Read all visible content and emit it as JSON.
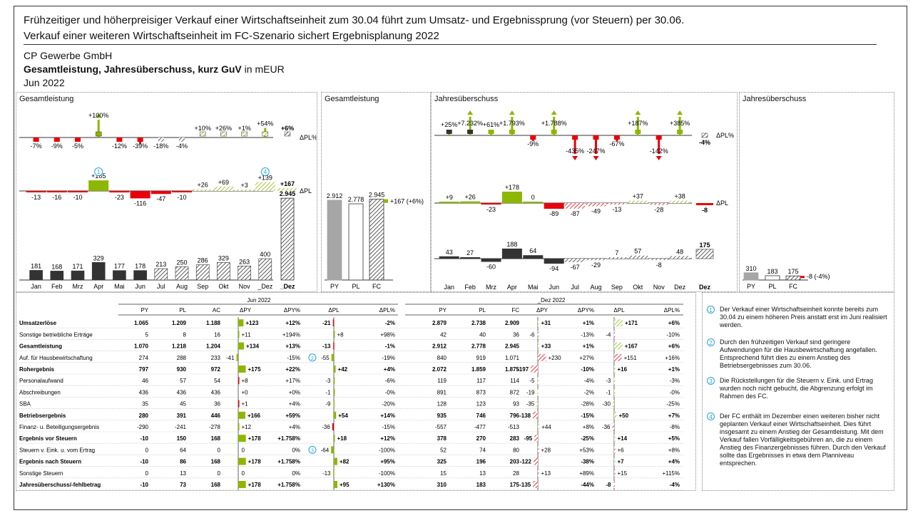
{
  "headline": {
    "line1": "Frühzeitiger und höherpreisiger Verkauf einer Wirtschaftseinheit zum 30.04 führt zum Umsatz- und Ergebnissprung (vor Steuern) per 30.06.",
    "line2": "Verkauf einer weiteren Wirtschaftseinheit im FC-Szenario sichert Ergebnisplanung 2022"
  },
  "company": "CP Gewerbe GmbH",
  "subtitle_bold": "Gesamtleistung, Jahresüberschuss, kurz GuV",
  "subtitle_unit": " in mEUR",
  "period": "Jun 2022",
  "colors": {
    "positive": "#8db600",
    "negative": "#e8000b",
    "actual": "#333333",
    "py": "#a6a6a6",
    "note": "#29a3d8"
  },
  "chart_data": [
    {
      "type": "bar",
      "title": "Gesamtleistung",
      "categories": [
        "Jan",
        "Feb",
        "Mrz",
        "Apr",
        "Mai",
        "Jun",
        "Jul",
        "Aug",
        "Sep",
        "Okt",
        "Nov",
        "_Dez"
      ],
      "series": [
        {
          "name": "Wert",
          "values": [
            181,
            168,
            171,
            329,
            177,
            178,
            213,
            250,
            286,
            329,
            263,
            400
          ]
        },
        {
          "name": "ΔPL",
          "values": [
            -13,
            -16,
            -10,
            165,
            -23,
            -116,
            -47,
            -10,
            26,
            69,
            3,
            139
          ]
        },
        {
          "name": "ΔPL%",
          "values": [
            -7,
            -9,
            -5,
            100,
            -12,
            -39,
            -18,
            -4,
            10,
            26,
            1,
            54
          ]
        }
      ],
      "total": {
        "value": 2945,
        "label": "2.945",
        "dpl": 167,
        "dpl_label": "+167",
        "dplp_label": "+6%"
      },
      "row_labels": [
        "ΔPL%",
        "ΔPL"
      ],
      "markers": [
        "1",
        "4"
      ]
    },
    {
      "type": "bar",
      "title": "Gesamtleistung",
      "categories": [
        "PY",
        "PL",
        "FC"
      ],
      "values": [
        2912,
        2778,
        2945
      ],
      "labels": [
        "2.912",
        "2.778",
        "2.945"
      ],
      "annotation": "+167 (+6%)"
    },
    {
      "type": "bar",
      "title": "Jahresüberschuss",
      "categories": [
        "Jan",
        "Feb",
        "Mrz",
        "Apr",
        "Mai",
        "Jun",
        "Jul",
        "Aug",
        "Sep",
        "Okt",
        "Nov",
        "Dez"
      ],
      "series": [
        {
          "name": "Wert",
          "values": [
            43,
            27,
            -60,
            188,
            64,
            -94,
            -67,
            -29,
            7,
            57,
            -8,
            48
          ]
        },
        {
          "name": "ΔPL",
          "values": [
            9,
            26,
            -23,
            178,
            0,
            -89,
            -87,
            -49,
            -13,
            37,
            -28,
            38
          ]
        },
        {
          "name": "ΔPL%",
          "labels": [
            "+25%",
            "+7.232%",
            "+61%",
            "+1.793%",
            "-9%",
            "+1.788%",
            "-435%",
            "-247%",
            "-67%",
            "+187%",
            "-142%",
            "+385%"
          ]
        }
      ],
      "total": {
        "value": 175,
        "label": "175",
        "dpl": -8,
        "dpl_label": "-8",
        "dplp_label": "-4%"
      },
      "row_labels": [
        "ΔPL%",
        "ΔPL"
      ]
    },
    {
      "type": "bar",
      "title": "Jahresüberschuss",
      "categories": [
        "PY",
        "PL",
        "FC"
      ],
      "values": [
        310,
        183,
        175
      ],
      "labels": [
        "310",
        "183",
        "175"
      ],
      "annotation": "-8 (-4%)"
    },
    {
      "type": "table",
      "group_headers": [
        "Jun 2022",
        "_Dez 2022"
      ],
      "columns": [
        "PY",
        "PL",
        "AC",
        "ΔPY",
        "ΔPY%",
        "ΔPL",
        "ΔPL%",
        "PY",
        "PL",
        "FC",
        "ΔPY",
        "ΔPY%",
        "ΔPL",
        "ΔPL%"
      ],
      "rows": [
        {
          "label": "Umsatzerlöse",
          "bold": true,
          "m": [
            "1.065",
            "1.209",
            "1.188"
          ],
          "mdpy": 123,
          "mdpy_l": "+123",
          "mdpyp": "+12%",
          "mdpl": -21,
          "mdpl_l": "-21",
          "mdplp": "-2%",
          "y": [
            "2.879",
            "2.738",
            "2.909"
          ],
          "ydpy": 31,
          "ydpy_l": "+31",
          "ydpyp": "+1%",
          "ydpl": 171,
          "ydpl_l": "+171",
          "ydplp": "+6%"
        },
        {
          "label": "Sonstige betriebliche Erträge",
          "bold": false,
          "m": [
            "5",
            "8",
            "16"
          ],
          "mdpy": 11,
          "mdpy_l": "+11",
          "mdpyp": "+194%",
          "mdpl": 8,
          "mdpl_l": "+8",
          "mdplp": "+98%",
          "y": [
            "42",
            "40",
            "36"
          ],
          "ydpy": -6,
          "ydpy_l": "-6",
          "ydpyp": "-13%",
          "ydpl": -4,
          "ydpl_l": "-4",
          "ydplp": "-10%"
        },
        {
          "label": "Gesamtleistung",
          "bold": true,
          "m": [
            "1.070",
            "1.218",
            "1.204"
          ],
          "mdpy": 134,
          "mdpy_l": "+134",
          "mdpyp": "+13%",
          "mdpl": -13,
          "mdpl_l": "-13",
          "mdplp": "-1%",
          "y": [
            "2.912",
            "2.778",
            "2.945"
          ],
          "ydpy": 33,
          "ydpy_l": "+33",
          "ydpyp": "+1%",
          "ydpl": 167,
          "ydpl_l": "+167",
          "ydplp": "+6%"
        },
        {
          "label": "Auf. für Hausbewirtschaftung",
          "bold": false,
          "m": [
            "274",
            "288",
            "233"
          ],
          "mdpy": -41,
          "mdpy_l": "-41",
          "mdpyp": "-15%",
          "mdpl": -55,
          "mdpl_l": "-55",
          "mdplp": "-19%",
          "mnote": "2",
          "y": [
            "840",
            "919",
            "1.071"
          ],
          "ydpy": 230,
          "ydpy_l": "+230",
          "ydpyp": "+27%",
          "ydpl": 151,
          "ydpl_l": "+151",
          "ydplp": "+16%",
          "neg": true
        },
        {
          "label": "Rohergebnis",
          "bold": true,
          "m": [
            "797",
            "930",
            "972"
          ],
          "mdpy": 175,
          "mdpy_l": "+175",
          "mdpyp": "+22%",
          "mdpl": 42,
          "mdpl_l": "+42",
          "mdplp": "+4%",
          "y": [
            "2.072",
            "1.859",
            "1.875"
          ],
          "ydpy": -197,
          "ydpy_l": "-197",
          "ydpyp": "-10%",
          "ydpl": 16,
          "ydpl_l": "+16",
          "ydplp": "+1%"
        },
        {
          "label": "Personalaufwand",
          "bold": false,
          "m": [
            "46",
            "57",
            "54"
          ],
          "mdpy": 8,
          "mdpy_l": "+8",
          "mdpyp": "+17%",
          "mdpl": -3,
          "mdpl_l": "-3",
          "mdplp": "-6%",
          "y": [
            "119",
            "117",
            "114"
          ],
          "ydpy": -5,
          "ydpy_l": "-5",
          "ydpyp": "-4%",
          "ydpl": -3,
          "ydpl_l": "-3",
          "ydplp": "-3%",
          "neg": true
        },
        {
          "label": "Abschreibungen",
          "bold": false,
          "m": [
            "436",
            "436",
            "436"
          ],
          "mdpy": 0,
          "mdpy_l": "+0",
          "mdpyp": "+0%",
          "mdpl": -1,
          "mdpl_l": "-1",
          "mdplp": "-0%",
          "y": [
            "891",
            "873",
            "872"
          ],
          "ydpy": -19,
          "ydpy_l": "-19",
          "ydpyp": "-2%",
          "ydpl": -1,
          "ydpl_l": "-1",
          "ydplp": "-0%",
          "neg": true
        },
        {
          "label": "SBA",
          "bold": false,
          "m": [
            "35",
            "45",
            "36"
          ],
          "mdpy": 1,
          "mdpy_l": "+1",
          "mdpyp": "+4%",
          "mdpl": -9,
          "mdpl_l": "-9",
          "mdplp": "-20%",
          "y": [
            "128",
            "123",
            "93"
          ],
          "ydpy": -35,
          "ydpy_l": "-35",
          "ydpyp": "-28%",
          "ydpl": -30,
          "ydpl_l": "-30",
          "ydplp": "-25%",
          "neg": true
        },
        {
          "label": "Betriebsergebnis",
          "bold": true,
          "m": [
            "280",
            "391",
            "446"
          ],
          "mdpy": 166,
          "mdpy_l": "+166",
          "mdpyp": "+59%",
          "mdpl": 54,
          "mdpl_l": "+54",
          "mdplp": "+14%",
          "y": [
            "935",
            "746",
            "796"
          ],
          "ydpy": -138,
          "ydpy_l": "-138",
          "ydpyp": "-15%",
          "ydpl": 50,
          "ydpl_l": "+50",
          "ydplp": "+7%"
        },
        {
          "label": "Finanz- u. Beteiligungsergebnis",
          "bold": false,
          "m": [
            "-290",
            "-241",
            "-278"
          ],
          "mdpy": 12,
          "mdpy_l": "+12",
          "mdpyp": "+4%",
          "mdpl": -36,
          "mdpl_l": "-36",
          "mdplp": "-15%",
          "y": [
            "-557",
            "-477",
            "-513"
          ],
          "ydpy": 44,
          "ydpy_l": "+44",
          "ydpyp": "+8%",
          "ydpl": -36,
          "ydpl_l": "-36",
          "ydplp": "-8%"
        },
        {
          "label": "Ergebnis vor Steuern",
          "bold": true,
          "m": [
            "-10",
            "150",
            "168"
          ],
          "mdpy": 178,
          "mdpy_l": "+178",
          "mdpyp": "+1.758%",
          "mdpl": 18,
          "mdpl_l": "+18",
          "mdplp": "+12%",
          "y": [
            "378",
            "270",
            "283"
          ],
          "ydpy": -95,
          "ydpy_l": "-95",
          "ydpyp": "-25%",
          "ydpl": 14,
          "ydpl_l": "+14",
          "ydplp": "+5%"
        },
        {
          "label": "Steuern v. Eink. u. vom Ertrag",
          "bold": false,
          "m": [
            "0",
            "64",
            "0"
          ],
          "mdpy": 0,
          "mdpy_l": "0",
          "mdpyp": "0%",
          "mdpl": -64,
          "mdpl_l": "-64",
          "mdplp": "-100%",
          "mnote": "3",
          "y": [
            "52",
            "74",
            "80"
          ],
          "ydpy": 28,
          "ydpy_l": "+28",
          "ydpyp": "+53%",
          "ydpl": 6,
          "ydpl_l": "+6",
          "ydplp": "+8%",
          "neg": true
        },
        {
          "label": "Ergebnis nach Steuern",
          "bold": true,
          "m": [
            "-10",
            "86",
            "168"
          ],
          "mdpy": 178,
          "mdpy_l": "+178",
          "mdpyp": "+1.758%",
          "mdpl": 82,
          "mdpl_l": "+82",
          "mdplp": "+95%",
          "y": [
            "325",
            "196",
            "203"
          ],
          "ydpy": -122,
          "ydpy_l": "-122",
          "ydpyp": "-38%",
          "ydpl": 7,
          "ydpl_l": "+7",
          "ydplp": "+4%"
        },
        {
          "label": "Sonstige Steuern",
          "bold": false,
          "m": [
            "0",
            "13",
            "0"
          ],
          "mdpy": 0,
          "mdpy_l": "0",
          "mdpyp": "0%",
          "mdpl": -13,
          "mdpl_l": "-13",
          "mdplp": "-100%",
          "y": [
            "15",
            "13",
            "28"
          ],
          "ydpy": 13,
          "ydpy_l": "+13",
          "ydpyp": "+89%",
          "ydpl": 15,
          "ydpl_l": "+15",
          "ydplp": "+115%",
          "neg": true
        },
        {
          "label": "Jahresüberschuss/-fehlbetrag",
          "bold": true,
          "m": [
            "-10",
            "73",
            "168"
          ],
          "mdpy": 178,
          "mdpy_l": "+178",
          "mdpyp": "+1.758%",
          "mdpl": 95,
          "mdpl_l": "+95",
          "mdplp": "+130%",
          "y": [
            "310",
            "183",
            "175"
          ],
          "ydpy": -135,
          "ydpy_l": "-135",
          "ydpyp": "-44%",
          "ydpl": -8,
          "ydpl_l": "-8",
          "ydplp": "-4%"
        }
      ]
    }
  ],
  "notes": [
    {
      "num": "1",
      "text": "Der Verkauf einer Wirtschaftseinheit konnte bereits zum 30.04 zu einem höheren Preis anstatt erst im Juni realisiert werden."
    },
    {
      "num": "2",
      "text": "Durch den frühzeitigen Verkauf sind geringere Aufwendungen für die Hausbewirtschaftung angefallen. Entsprechend führt dies zu einem Anstieg des Betriebsergebnisses zum 30.06."
    },
    {
      "num": "3",
      "text": "Die Rückstellungen für die Steuern v. Eink. und Ertrag wurden noch nicht gebucht, die Abgrenzung erfolgt im Rahmen des FC."
    },
    {
      "num": "4",
      "text": "Der FC enthält im Dezember einen weiteren bisher nicht geplanten Verkauf einer Wirtschaftseinheit. Dies führt insgesamt zu einem Anstieg der Gesamtleistung. Mit dem Verkauf fallen Vorfälligkeitsgebühren an, die zu einem Anstieg des Finanzergebnisses führen. Durch den Verkauf sollte das Ergebnisses in etwa dem Planniveau entsprechen."
    }
  ]
}
